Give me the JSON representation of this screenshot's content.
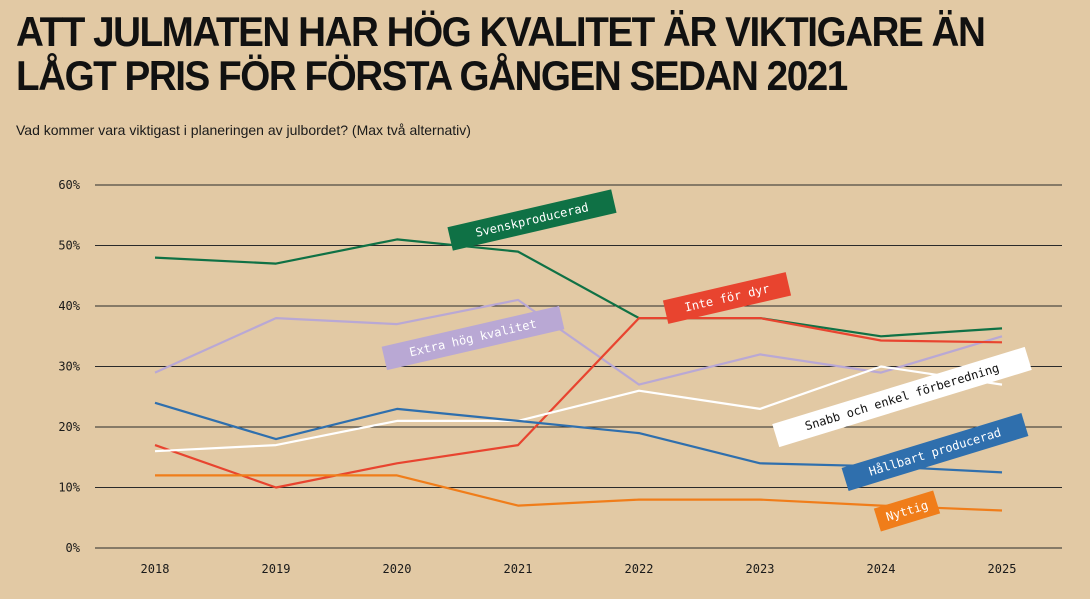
{
  "title": "ATT JULMATEN HAR HÖG KVALITET ÄR VIKTIGARE ÄN LÅGT PRIS FÖR FÖRSTA GÅNGEN SEDAN 2021",
  "subtitle": "Vad kommer vara viktigast i planeringen av julbordet? (Max två alternativ)",
  "chart_data": {
    "type": "line",
    "x": [
      "2018",
      "2019",
      "2020",
      "2021",
      "2022",
      "2023",
      "2024",
      "2025"
    ],
    "ylim": [
      0,
      60
    ],
    "yticks": [
      "0%",
      "10%",
      "20%",
      "30%",
      "40%",
      "50%",
      "60%"
    ],
    "grid": true,
    "series": [
      {
        "name": "Svenskproducerad",
        "color": "#0f7145",
        "label_text_color": "#ffffff",
        "values": [
          48,
          47,
          51,
          49,
          38,
          38,
          35,
          36.3
        ]
      },
      {
        "name": "Extra hög kvalitet",
        "color": "#b9a8d4",
        "label_text_color": "#ffffff",
        "values": [
          29,
          38,
          37,
          41,
          27,
          32,
          29,
          35
        ]
      },
      {
        "name": "Inte för dyr",
        "color": "#e8442f",
        "label_text_color": "#ffffff",
        "values": [
          17,
          10,
          14,
          17,
          38,
          38,
          34.3,
          34
        ]
      },
      {
        "name": "Snabb och enkel förberedning",
        "color": "#ffffff",
        "label_text_color": "#111111",
        "values": [
          16,
          17,
          21,
          21,
          26,
          23,
          30,
          27
        ]
      },
      {
        "name": "Hållbart producerad",
        "color": "#2f6fad",
        "label_text_color": "#ffffff",
        "values": [
          24,
          18,
          23,
          21,
          19,
          14,
          13.5,
          12.5
        ]
      },
      {
        "name": "Nyttig",
        "color": "#f07d1a",
        "label_text_color": "#ffffff",
        "values": [
          12,
          12,
          12,
          7,
          8,
          8,
          7,
          6.2
        ]
      }
    ]
  }
}
